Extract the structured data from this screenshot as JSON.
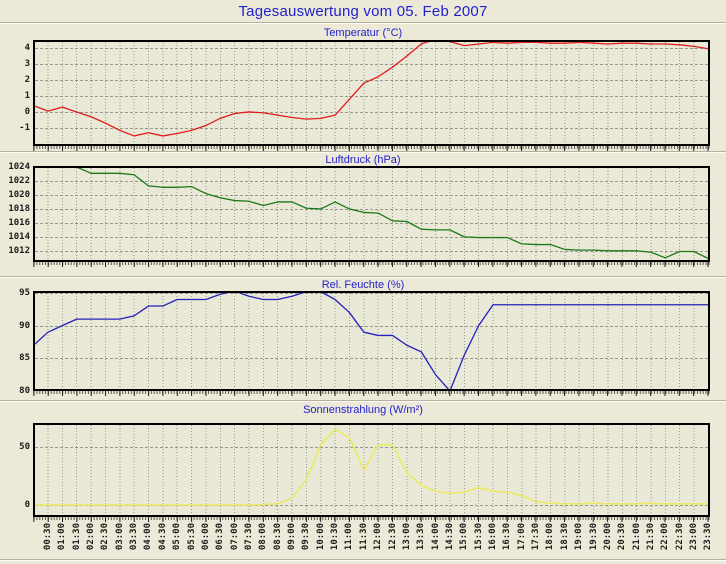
{
  "header": {
    "title": "Tagesauswertung vom 05. Feb 2007",
    "title_color": "#2222CC"
  },
  "x_axis": {
    "data_start": "00:00",
    "interval_minutes": 30,
    "tick_labels": [
      "00:30",
      "01:00",
      "01:30",
      "02:00",
      "02:30",
      "03:00",
      "03:30",
      "04:00",
      "04:30",
      "05:00",
      "05:30",
      "06:00",
      "06:30",
      "07:00",
      "07:30",
      "08:00",
      "08:30",
      "09:00",
      "09:30",
      "10:00",
      "10:30",
      "11:00",
      "11:30",
      "12:00",
      "12:30",
      "13:00",
      "13:30",
      "14:00",
      "14:30",
      "15:00",
      "15:30",
      "16:00",
      "16:30",
      "17:00",
      "17:30",
      "18:00",
      "18:30",
      "19:00",
      "19:30",
      "20:00",
      "20:30",
      "21:00",
      "21:30",
      "22:00",
      "22:30",
      "23:00",
      "23:30"
    ]
  },
  "chart_data": [
    {
      "type": "line",
      "id": "temperatur",
      "title": "Temperatur (°C)",
      "unit": "°C",
      "color": "#DE1E1E",
      "grid": true,
      "y_ticks": [
        4,
        3,
        2,
        1,
        0,
        -1
      ],
      "ylim": [
        -2.13,
        4.5
      ],
      "start_index": 0,
      "values": [
        0.4,
        0.05,
        0.3,
        0.0,
        -0.3,
        -0.7,
        -1.15,
        -1.5,
        -1.3,
        -1.5,
        -1.35,
        -1.15,
        -0.85,
        -0.4,
        -0.1,
        0.0,
        -0.05,
        -0.2,
        -0.35,
        -0.45,
        -0.4,
        -0.2,
        0.8,
        1.8,
        2.2,
        2.8,
        3.5,
        4.25,
        4.55,
        4.4,
        4.15,
        4.25,
        4.35,
        4.3,
        4.35,
        4.35,
        4.3,
        4.3,
        4.35,
        4.3,
        4.25,
        4.3,
        4.3,
        4.25,
        4.25,
        4.2,
        4.1,
        3.95
      ]
    },
    {
      "type": "line",
      "id": "luftdruck",
      "title": "Luftdruck (hPa)",
      "unit": "hPa",
      "color": "#1B7A1B",
      "grid": true,
      "y_ticks": [
        1024,
        1022,
        1020,
        1018,
        1016,
        1014,
        1012
      ],
      "ylim": [
        1010.4,
        1024.15
      ],
      "start_index": 3,
      "values": [
        1024,
        1023.1,
        1023.1,
        1023.1,
        1022.9,
        1021.3,
        1021.1,
        1021.1,
        1021.2,
        1020.2,
        1019.6,
        1019.2,
        1019.1,
        1018.5,
        1019.0,
        1019.0,
        1018.1,
        1018.0,
        1019.0,
        1018.0,
        1017.5,
        1017.4,
        1016.3,
        1016.2,
        1015.1,
        1015.0,
        1015.0,
        1014.0,
        1013.9,
        1013.9,
        1013.9,
        1013.0,
        1012.9,
        1012.9,
        1012.2,
        1012.1,
        1012.1,
        1012.0,
        1012.0,
        1012.0,
        1011.8,
        1011.0,
        1011.9,
        1011.9,
        1010.9
      ]
    },
    {
      "type": "line",
      "id": "feuchte",
      "title": "Rel. Feuchte (%)",
      "unit": "%",
      "color": "#2222BC",
      "grid": true,
      "y_ticks": [
        95,
        90,
        85,
        80
      ],
      "ylim": [
        80,
        95.3
      ],
      "start_index": 0,
      "values": [
        87,
        89,
        90,
        91,
        91,
        91,
        91,
        91.5,
        93,
        93,
        94,
        94,
        94,
        94.8,
        95.3,
        94.5,
        94,
        94,
        94.5,
        95.2,
        95.2,
        94,
        92,
        89,
        88.5,
        88.5,
        87,
        86,
        82.5,
        80,
        85.5,
        90,
        93.2,
        93.2,
        93.2,
        93.2,
        93.2,
        93.2,
        93.2,
        93.2,
        93.2,
        93.2,
        93.2,
        93.2,
        93.2,
        93.2,
        93.2,
        93.2
      ]
    },
    {
      "type": "line",
      "id": "sonnenstrahlung",
      "title": "Sonnenstrahlung (W/m²)",
      "unit": "W/m²",
      "color": "#EBEB5E",
      "grid": true,
      "y_ticks": [
        50,
        0
      ],
      "ylim": [
        -10.3,
        70.7
      ],
      "start_index": 0,
      "values": [
        0,
        0,
        0,
        0,
        0,
        0,
        0,
        0,
        0,
        0,
        0,
        0,
        0,
        0,
        0,
        0,
        0.5,
        1,
        6,
        22,
        52,
        65,
        58,
        30,
        52,
        52,
        28,
        17,
        12,
        10,
        11,
        15,
        12,
        11,
        8,
        3,
        1.5,
        1,
        1,
        1.5,
        1,
        1,
        1,
        1.5,
        1,
        1,
        1,
        1
      ]
    }
  ]
}
